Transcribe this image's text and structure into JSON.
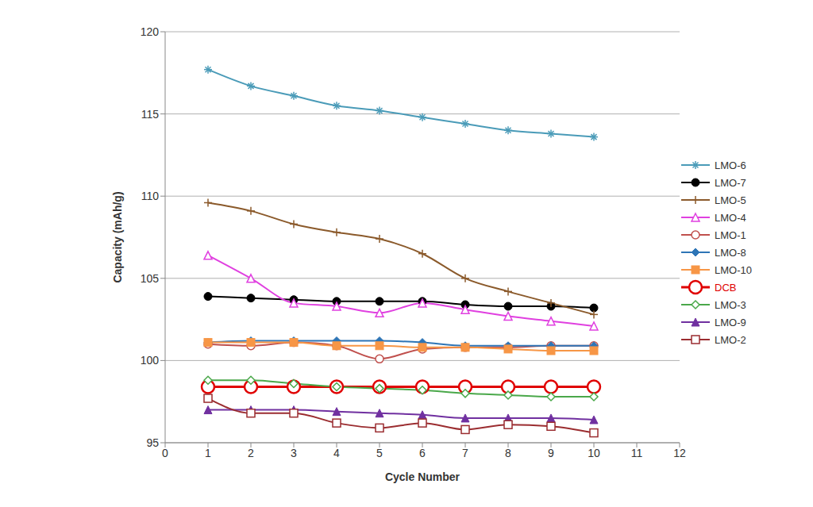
{
  "chart_data": {
    "type": "line",
    "x_label": "Cycle Number",
    "y_label": "Capacity (mAh/g)",
    "x": [
      1,
      2,
      3,
      4,
      5,
      6,
      7,
      8,
      9,
      10
    ],
    "xlim": [
      0,
      12
    ],
    "xticks": [
      0,
      1,
      2,
      3,
      4,
      5,
      6,
      7,
      8,
      9,
      10,
      11,
      12
    ],
    "ylim": [
      95,
      120
    ],
    "yticks": [
      95,
      100,
      105,
      110,
      115,
      120
    ],
    "grid": true,
    "legend": "right",
    "series": [
      {
        "name": "LMO-6",
        "color": "#4a9bb8",
        "marker": "star",
        "values": [
          117.7,
          116.7,
          116.1,
          115.5,
          115.2,
          114.8,
          114.4,
          114.0,
          113.8,
          113.6
        ]
      },
      {
        "name": "LMO-7",
        "color": "#000000",
        "marker": "circle",
        "values": [
          103.9,
          103.8,
          103.7,
          103.6,
          103.6,
          103.6,
          103.4,
          103.3,
          103.3,
          103.2
        ]
      },
      {
        "name": "LMO-5",
        "color": "#8b5a2b",
        "marker": "plus",
        "values": [
          109.6,
          109.1,
          108.3,
          107.8,
          107.4,
          106.5,
          105.0,
          104.2,
          103.5,
          102.8
        ]
      },
      {
        "name": "LMO-4",
        "color": "#e040e0",
        "marker": "triangle-open",
        "values": [
          106.4,
          105.0,
          103.5,
          103.3,
          102.9,
          103.5,
          103.1,
          102.7,
          102.4,
          102.1
        ]
      },
      {
        "name": "LMO-1",
        "color": "#c0504d",
        "marker": "circle-open",
        "values": [
          101.0,
          100.9,
          101.1,
          100.9,
          100.1,
          100.7,
          100.8,
          100.8,
          100.9,
          100.9
        ]
      },
      {
        "name": "LMO-8",
        "color": "#2e75b6",
        "marker": "diamond",
        "values": [
          101.1,
          101.2,
          101.2,
          101.2,
          101.2,
          101.1,
          100.9,
          100.9,
          100.9,
          100.9
        ]
      },
      {
        "name": "LMO-10",
        "color": "#f79646",
        "marker": "square",
        "values": [
          101.1,
          101.1,
          101.1,
          100.9,
          100.9,
          100.8,
          100.8,
          100.7,
          100.6,
          100.6
        ]
      },
      {
        "name": "DCB",
        "color": "#e00000",
        "marker": "circle-open",
        "values": [
          98.4,
          98.4,
          98.4,
          98.4,
          98.4,
          98.4,
          98.4,
          98.4,
          98.4,
          98.4
        ]
      },
      {
        "name": "LMO-3",
        "color": "#4aa84a",
        "marker": "diamond-open",
        "values": [
          98.8,
          98.8,
          98.6,
          98.4,
          98.3,
          98.2,
          98.0,
          97.9,
          97.8,
          97.8
        ]
      },
      {
        "name": "LMO-9",
        "color": "#7030a0",
        "marker": "triangle",
        "values": [
          97.0,
          97.0,
          97.0,
          96.9,
          96.8,
          96.7,
          96.5,
          96.5,
          96.5,
          96.4
        ]
      },
      {
        "name": "LMO-2",
        "color": "#9b2d30",
        "marker": "square-open",
        "values": [
          97.7,
          96.8,
          96.8,
          96.2,
          95.9,
          96.2,
          95.8,
          96.1,
          96.0,
          95.6
        ]
      }
    ]
  }
}
